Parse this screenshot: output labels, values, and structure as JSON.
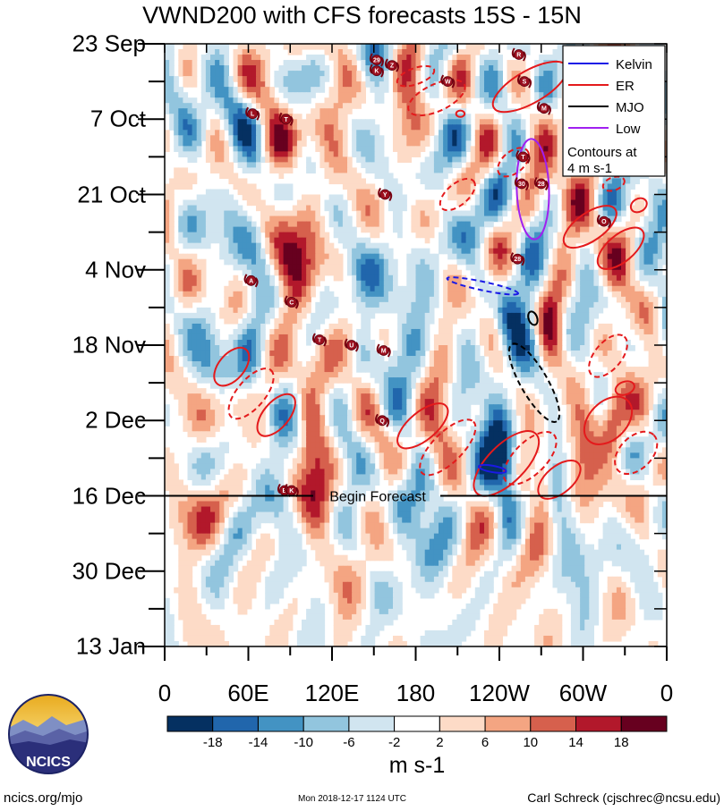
{
  "chart_data": {
    "type": "heatmap",
    "title": "VWND200 with CFS forecasts  15S - 15N",
    "xlabel": "",
    "ylabel": "",
    "x_ticks": [
      "0",
      "60E",
      "120E",
      "180",
      "120W",
      "60W",
      "0"
    ],
    "x_range_deg": [
      0,
      360
    ],
    "y_ticks": [
      "23 Sep",
      "7 Oct",
      "21 Oct",
      "4 Nov",
      "18 Nov",
      "2 Dec",
      "16 Dec",
      "30 Dec",
      "13 Jan"
    ],
    "y_range_days": [
      0,
      112
    ],
    "forecast_start_label": "Begin Forecast",
    "forecast_start_day": 84,
    "colorbar": {
      "units": "m s-1",
      "labels": [
        "-18",
        "-14",
        "-10",
        "-6",
        "-2",
        "2",
        "6",
        "10",
        "14",
        "18"
      ],
      "colors": [
        "#053061",
        "#2166ac",
        "#4393c3",
        "#92c5de",
        "#d1e5f0",
        "#ffffff",
        "#fddbc7",
        "#f4a582",
        "#d6604d",
        "#b2182b",
        "#67001f"
      ]
    },
    "legend": {
      "position": "top-right",
      "entries": [
        {
          "name": "Kelvin",
          "color": "#1a1ae6"
        },
        {
          "name": "ER",
          "color": "#e41a1c"
        },
        {
          "name": "MJO",
          "color": "#000000"
        },
        {
          "name": "Low",
          "color": "#a020f0"
        }
      ],
      "note_line1": "Contours at",
      "note_line2": "4 m s-1"
    },
    "storm_markers": [
      {
        "label": "29",
        "lon": 152,
        "day": 3
      },
      {
        "label": "K",
        "lon": 152,
        "day": 5
      },
      {
        "label": "Z",
        "lon": 163,
        "day": 4
      },
      {
        "label": "W",
        "lon": 203,
        "day": 7
      },
      {
        "label": "R",
        "lon": 254,
        "day": 2
      },
      {
        "label": "S",
        "lon": 258,
        "day": 7
      },
      {
        "label": "M",
        "lon": 272,
        "day": 12
      },
      {
        "label": "L",
        "lon": 63,
        "day": 13
      },
      {
        "label": "T",
        "lon": 87,
        "day": 14
      },
      {
        "label": "T",
        "lon": 257,
        "day": 21
      },
      {
        "label": "30",
        "lon": 256,
        "day": 26
      },
      {
        "label": "28",
        "lon": 270,
        "day": 26
      },
      {
        "label": "Y",
        "lon": 158,
        "day": 28
      },
      {
        "label": "O",
        "lon": 315,
        "day": 33
      },
      {
        "label": "28",
        "lon": 253,
        "day": 40
      },
      {
        "label": "A",
        "lon": 62,
        "day": 44
      },
      {
        "label": "C",
        "lon": 91,
        "day": 48
      },
      {
        "label": "T",
        "lon": 111,
        "day": 55
      },
      {
        "label": "U",
        "lon": 134,
        "day": 56
      },
      {
        "label": "M",
        "lon": 157,
        "day": 57
      },
      {
        "label": "Q",
        "lon": 156,
        "day": 70
      },
      {
        "label": "B",
        "lon": 86,
        "day": 83
      },
      {
        "label": "K",
        "lon": 91,
        "day": 83
      }
    ]
  },
  "footer": {
    "left": "ncics.org/mjo",
    "timestamp": "Mon 2018-12-17 1124 UTC",
    "author": "Carl Schreck (cjschrec@ncsu.edu)"
  },
  "logo": {
    "text": "NCICS"
  }
}
